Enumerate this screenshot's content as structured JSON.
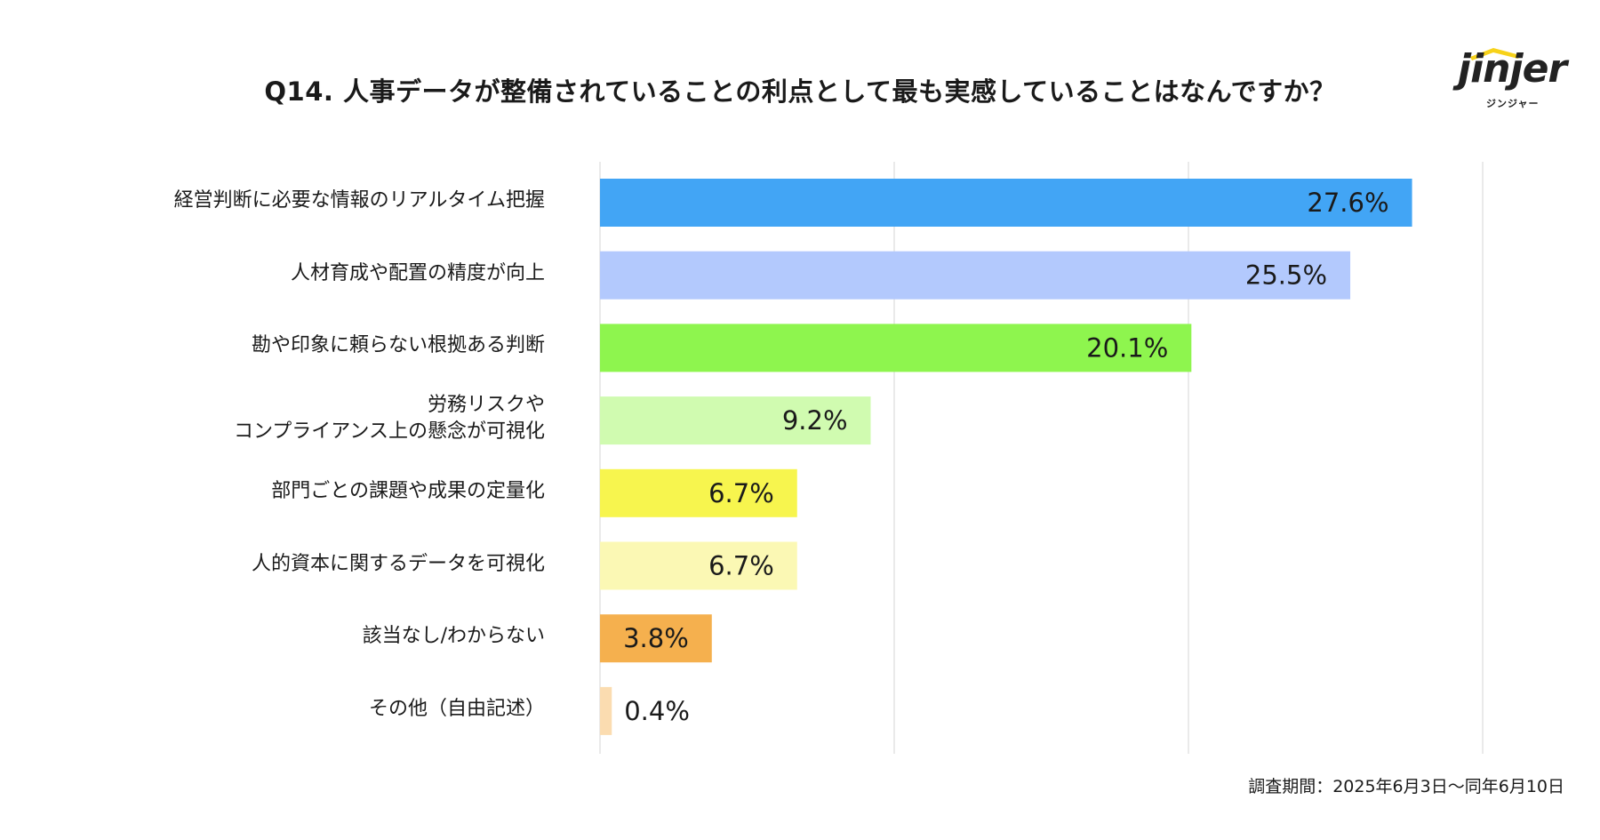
{
  "logo": {
    "word": "jinjer",
    "sub": "ジンジャー",
    "accent": "#f7d21a"
  },
  "footnote": "調査期間：2025年6月3日〜同年6月10日",
  "chart_data": {
    "type": "bar",
    "orientation": "horizontal",
    "title": "Q14. 人事データが整備されていることの利点として最も実感していることはなんですか？",
    "categories": [
      [
        "経営判断に必要な情報のリアルタイム把握"
      ],
      [
        "人材育成や配置の精度が向上"
      ],
      [
        "勘や印象に頼らない根拠ある判断"
      ],
      [
        "労務リスクや",
        "コンプライアンス上の懸念が可視化"
      ],
      [
        "部門ごとの課題や成果の定量化"
      ],
      [
        "人的資本に関するデータを可視化"
      ],
      [
        "該当なし/わからない"
      ],
      [
        "その他（自由記述）"
      ]
    ],
    "values": [
      27.6,
      25.5,
      20.1,
      9.2,
      6.7,
      6.7,
      3.8,
      0.4
    ],
    "value_labels": [
      "27.6%",
      "25.5%",
      "20.1%",
      "9.2%",
      "6.7%",
      "6.7%",
      "3.8%",
      "0.4%"
    ],
    "colors": [
      "#42a5f5",
      "#b3c9fd",
      "#8ef54e",
      "#d0fbb0",
      "#f7f54e",
      "#fbf8b4",
      "#f5b04e",
      "#fbdcb0"
    ],
    "xlim": [
      0,
      30
    ],
    "grid": true,
    "legend": "none"
  }
}
